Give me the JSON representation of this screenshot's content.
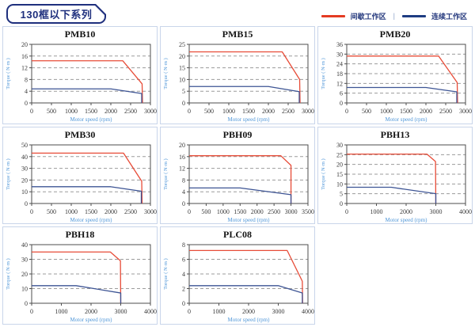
{
  "header": {
    "title": "130框以下系列"
  },
  "legend": {
    "items": [
      {
        "label": "间歇工作区",
        "color": "#e43b22"
      },
      {
        "label": "连续工作区",
        "color": "#1e3d82"
      }
    ],
    "separator": "|"
  },
  "colors": {
    "accent_navy": "#1e2f7d",
    "cell_border": "#c9d5ea",
    "grid_line": "#9b9b9b",
    "spine": "#4d4d4d",
    "axis_label_blue": "#4f96d8",
    "intermittent_red": "#e74c38",
    "continuous_blue": "#3d5494"
  },
  "chart_data": [
    {
      "type": "line",
      "title": "PMB10",
      "xlabel": "Motor speed (rpm)",
      "ylabel": "Torque ( N·m )",
      "xlim": [
        0,
        3000
      ],
      "ylim": [
        0,
        20
      ],
      "xticks": [
        0,
        500,
        1000,
        1500,
        2000,
        2500,
        3000
      ],
      "yticks": [
        0,
        4,
        8,
        12,
        16,
        20
      ],
      "grid": "horizontal-dashed",
      "legend_position": "none",
      "series": [
        {
          "name": "间歇工作区",
          "color": "#e74c38",
          "points": [
            [
              0,
              14.4
            ],
            [
              2300,
              14.4
            ],
            [
              2790,
              6.5
            ],
            [
              2800,
              0
            ]
          ]
        },
        {
          "name": "连续工作区",
          "color": "#3d5494",
          "points": [
            [
              0,
              4.8
            ],
            [
              2000,
              4.8
            ],
            [
              2780,
              3.2
            ],
            [
              2780,
              0
            ]
          ]
        }
      ]
    },
    {
      "type": "line",
      "title": "PMB15",
      "xlabel": "Motor speed (rpm)",
      "ylabel": "Torque ( N·m )",
      "xlim": [
        0,
        3000
      ],
      "ylim": [
        0,
        25
      ],
      "xticks": [
        0,
        500,
        1000,
        1500,
        2000,
        2500,
        3000
      ],
      "yticks": [
        0,
        5,
        10,
        15,
        20,
        25
      ],
      "grid": "horizontal-dashed",
      "legend_position": "none",
      "series": [
        {
          "name": "间歇工作区",
          "color": "#e74c38",
          "points": [
            [
              0,
              21.8
            ],
            [
              2350,
              21.8
            ],
            [
              2790,
              10
            ],
            [
              2800,
              0
            ]
          ]
        },
        {
          "name": "连续工作区",
          "color": "#3d5494",
          "points": [
            [
              0,
              7
            ],
            [
              2000,
              7
            ],
            [
              2780,
              4.8
            ],
            [
              2780,
              0
            ]
          ]
        }
      ]
    },
    {
      "type": "line",
      "title": "PMB20",
      "xlabel": "Motor speed (rpm)",
      "ylabel": "Torque ( N·m )",
      "xlim": [
        0,
        3000
      ],
      "ylim": [
        0,
        36
      ],
      "xticks": [
        0,
        500,
        1000,
        1500,
        2000,
        2500,
        3000
      ],
      "yticks": [
        0,
        6,
        12,
        18,
        24,
        30,
        36
      ],
      "grid": "horizontal-dashed",
      "legend_position": "none",
      "series": [
        {
          "name": "间歇工作区",
          "color": "#e74c38",
          "points": [
            [
              0,
              28.8
            ],
            [
              2320,
              28.8
            ],
            [
              2790,
              12.5
            ],
            [
              2800,
              0
            ]
          ]
        },
        {
          "name": "连续工作区",
          "color": "#3d5494",
          "points": [
            [
              0,
              9.5
            ],
            [
              2000,
              9.5
            ],
            [
              2780,
              6.8
            ],
            [
              2780,
              0
            ]
          ]
        }
      ]
    },
    {
      "type": "line",
      "title": "PMB30",
      "xlabel": "Motor speed (rpm)",
      "ylabel": "Torque ( N·m )",
      "xlim": [
        0,
        3000
      ],
      "ylim": [
        0,
        50
      ],
      "xticks": [
        0,
        500,
        1000,
        1500,
        2000,
        2500,
        3000
      ],
      "yticks": [
        0,
        10,
        20,
        30,
        40,
        50
      ],
      "grid": "horizontal-dashed",
      "legend_position": "none",
      "series": [
        {
          "name": "间歇工作区",
          "color": "#e74c38",
          "points": [
            [
              0,
              43
            ],
            [
              2320,
              43
            ],
            [
              2780,
              19
            ],
            [
              2790,
              0
            ]
          ]
        },
        {
          "name": "连续工作区",
          "color": "#3d5494",
          "points": [
            [
              0,
              14.3
            ],
            [
              2000,
              14.3
            ],
            [
              2770,
              10.5
            ],
            [
              2770,
              0
            ]
          ]
        }
      ]
    },
    {
      "type": "line",
      "title": "PBH09",
      "xlabel": "Motor speed (rpm)",
      "ylabel": "Torque ( N·m )",
      "xlim": [
        0,
        3500
      ],
      "ylim": [
        0,
        20
      ],
      "xticks": [
        0,
        500,
        1000,
        1500,
        2000,
        2500,
        3000,
        3500
      ],
      "yticks": [
        0,
        4,
        8,
        12,
        16,
        20
      ],
      "grid": "horizontal-dashed",
      "legend_position": "none",
      "series": [
        {
          "name": "间歇工作区",
          "color": "#e74c38",
          "points": [
            [
              0,
              16.3
            ],
            [
              2700,
              16.3
            ],
            [
              3000,
              13
            ],
            [
              3000,
              0
            ]
          ]
        },
        {
          "name": "连续工作区",
          "color": "#3d5494",
          "points": [
            [
              0,
              5.3
            ],
            [
              1500,
              5.3
            ],
            [
              3000,
              3
            ],
            [
              3000,
              0
            ]
          ]
        }
      ]
    },
    {
      "type": "line",
      "title": "PBH13",
      "xlabel": "Motor speed (rpm)",
      "ylabel": "Torque ( N·m )",
      "xlim": [
        0,
        4000
      ],
      "ylim": [
        0,
        30
      ],
      "xticks": [
        0,
        1000,
        2000,
        3000,
        4000
      ],
      "yticks": [
        0,
        5,
        10,
        15,
        20,
        25,
        30
      ],
      "grid": "horizontal-dashed",
      "legend_position": "none",
      "series": [
        {
          "name": "间歇工作区",
          "color": "#e74c38",
          "points": [
            [
              0,
              25.3
            ],
            [
              2700,
              25.3
            ],
            [
              2990,
              21.5
            ],
            [
              3000,
              0
            ]
          ]
        },
        {
          "name": "连续工作区",
          "color": "#3d5494",
          "points": [
            [
              0,
              8.3
            ],
            [
              1500,
              8.3
            ],
            [
              3000,
              5
            ],
            [
              3000,
              0
            ]
          ]
        }
      ]
    },
    {
      "type": "line",
      "title": "PBH18",
      "xlabel": "Motor speed (rpm)",
      "ylabel": "Torque ( N·m )",
      "xlim": [
        0,
        4000
      ],
      "ylim": [
        0,
        40
      ],
      "xticks": [
        0,
        1000,
        2000,
        3000,
        4000
      ],
      "yticks": [
        0,
        10,
        20,
        30,
        40
      ],
      "grid": "horizontal-dashed",
      "legend_position": "none",
      "series": [
        {
          "name": "间歇工作区",
          "color": "#e74c38",
          "points": [
            [
              0,
              35
            ],
            [
              2650,
              35
            ],
            [
              2990,
              29
            ],
            [
              3000,
              0
            ]
          ]
        },
        {
          "name": "连续工作区",
          "color": "#3d5494",
          "points": [
            [
              0,
              12
            ],
            [
              1500,
              12
            ],
            [
              3000,
              7
            ],
            [
              3000,
              0
            ]
          ]
        }
      ]
    },
    {
      "type": "line",
      "title": "PLC08",
      "xlabel": "Motor speed (rpm)",
      "ylabel": "Torque ( N·m )",
      "xlim": [
        0,
        4000
      ],
      "ylim": [
        0,
        8
      ],
      "xticks": [
        0,
        1000,
        2000,
        3000,
        4000
      ],
      "yticks": [
        0,
        2,
        4,
        6,
        8
      ],
      "grid": "horizontal-dashed",
      "legend_position": "none",
      "series": [
        {
          "name": "间歇工作区",
          "color": "#e74c38",
          "points": [
            [
              0,
              7.2
            ],
            [
              3300,
              7.2
            ],
            [
              3810,
              3
            ],
            [
              3820,
              0
            ]
          ]
        },
        {
          "name": "连续工作区",
          "color": "#3d5494",
          "points": [
            [
              0,
              2.4
            ],
            [
              3000,
              2.4
            ],
            [
              3810,
              1.4
            ],
            [
              3810,
              0
            ]
          ]
        }
      ]
    }
  ]
}
